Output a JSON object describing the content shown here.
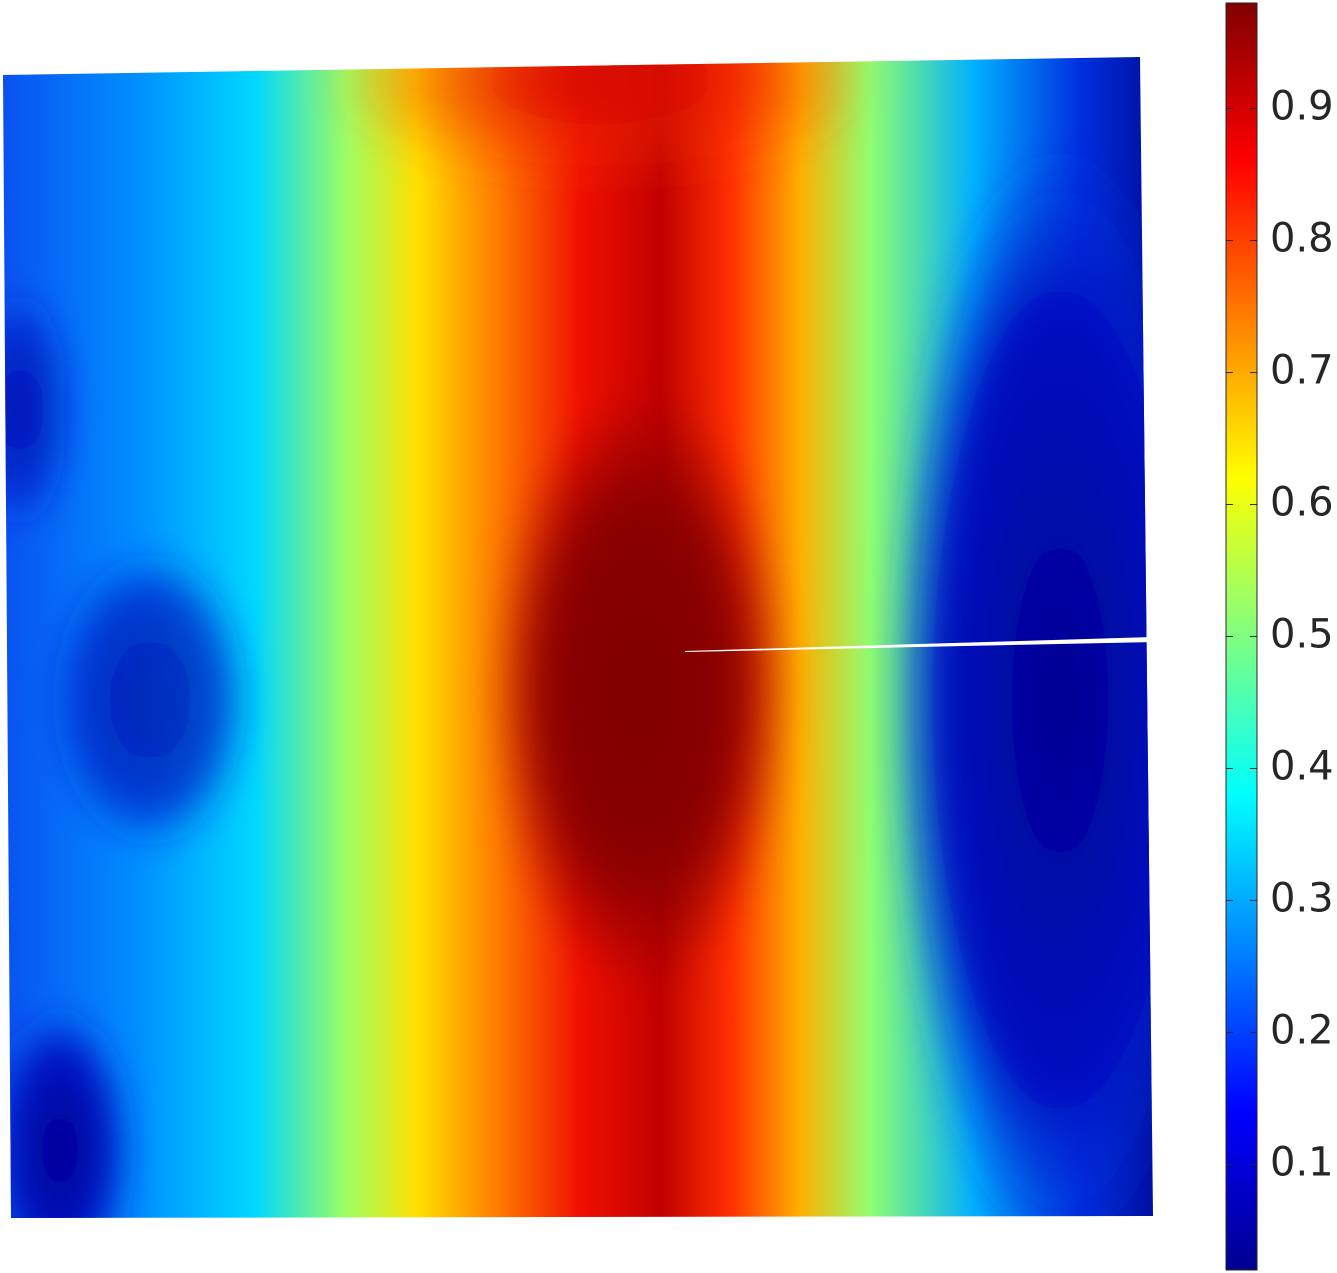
{
  "chart_data": {
    "type": "colorfield",
    "colormap": "jet",
    "clim": [
      0.02,
      0.98
    ],
    "cticks": [
      0.1,
      0.2,
      0.3,
      0.4,
      0.5,
      0.6,
      0.7,
      0.8,
      0.9
    ]
  }
}
